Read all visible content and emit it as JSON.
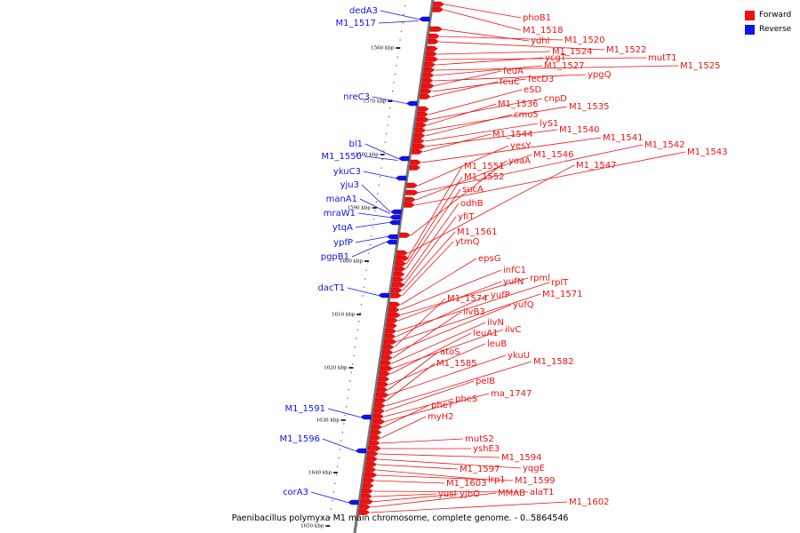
{
  "caption": "Paenibacillus polymyxa M1 main chromosome, complete genome. - 0..5864546",
  "legend": [
    {
      "label": "Forward",
      "color": "#ee1111"
    },
    {
      "label": "Reverse",
      "color": "#1111ee"
    }
  ],
  "colors": {
    "forward": "#ee1111",
    "reverse": "#1111ee",
    "backbone": "#777777"
  },
  "ticks": [
    "1560 kbp",
    "1570 kbp",
    "1580 kbp",
    "1590 kbp",
    "1600 kbp",
    "1610 kbp",
    "1620 kbp",
    "1630 kbp",
    "1640 kbp",
    "1650 kbp"
  ],
  "forward_labels": [
    "phoB1",
    "M1_1518",
    "ydhl",
    "M1_1520",
    "M1_1522",
    "M1_1524",
    "mutT1",
    "ycgT",
    "M1_1525",
    "M1_1527",
    "ypgQ",
    "feuA",
    "fecD3",
    "feuC",
    "eSD",
    "cnpD",
    "M1_1536",
    "M1_1535",
    "cmo5",
    "lyS1",
    "M1_1540",
    "M1_1544",
    "M1_1541",
    "yesY",
    "M1_1542",
    "M1_1546",
    "M1_1543",
    "yoaA",
    "M1_1547",
    "M1_1551",
    "M1_1552",
    "sucA",
    "odhB",
    "yfiT",
    "M1_1561",
    "ytmQ",
    "epsG",
    "infC1",
    "rpml",
    "yufN",
    "rplT",
    "yufP",
    "M1_1571",
    "M1_1574",
    "yufQ",
    "ilvB3",
    "ilvN",
    "ilvC",
    "leuA1",
    "leuB",
    "atoS",
    "ykuU",
    "M1_1585",
    "M1_1582",
    "pelB",
    "pheS",
    "ma_1747",
    "pheT",
    "myH2",
    "mutS2",
    "yshE3",
    "M1_1594",
    "yqgE",
    "M1_1597",
    "lrp1",
    "M1_1599",
    "M1_1603",
    "alaT1",
    "yusI",
    "yjbO",
    "MMAB",
    "M1_1602"
  ],
  "reverse_labels": [
    "dedA3",
    "M1_1517",
    "nreC3",
    "bl1",
    "M1_1550",
    "ykuC3",
    "yju3",
    "manA1",
    "mraW1",
    "ytqA",
    "ypfP",
    "pgpB1",
    "dacT1",
    "M1_1591",
    "M1_1596",
    "corA3"
  ]
}
